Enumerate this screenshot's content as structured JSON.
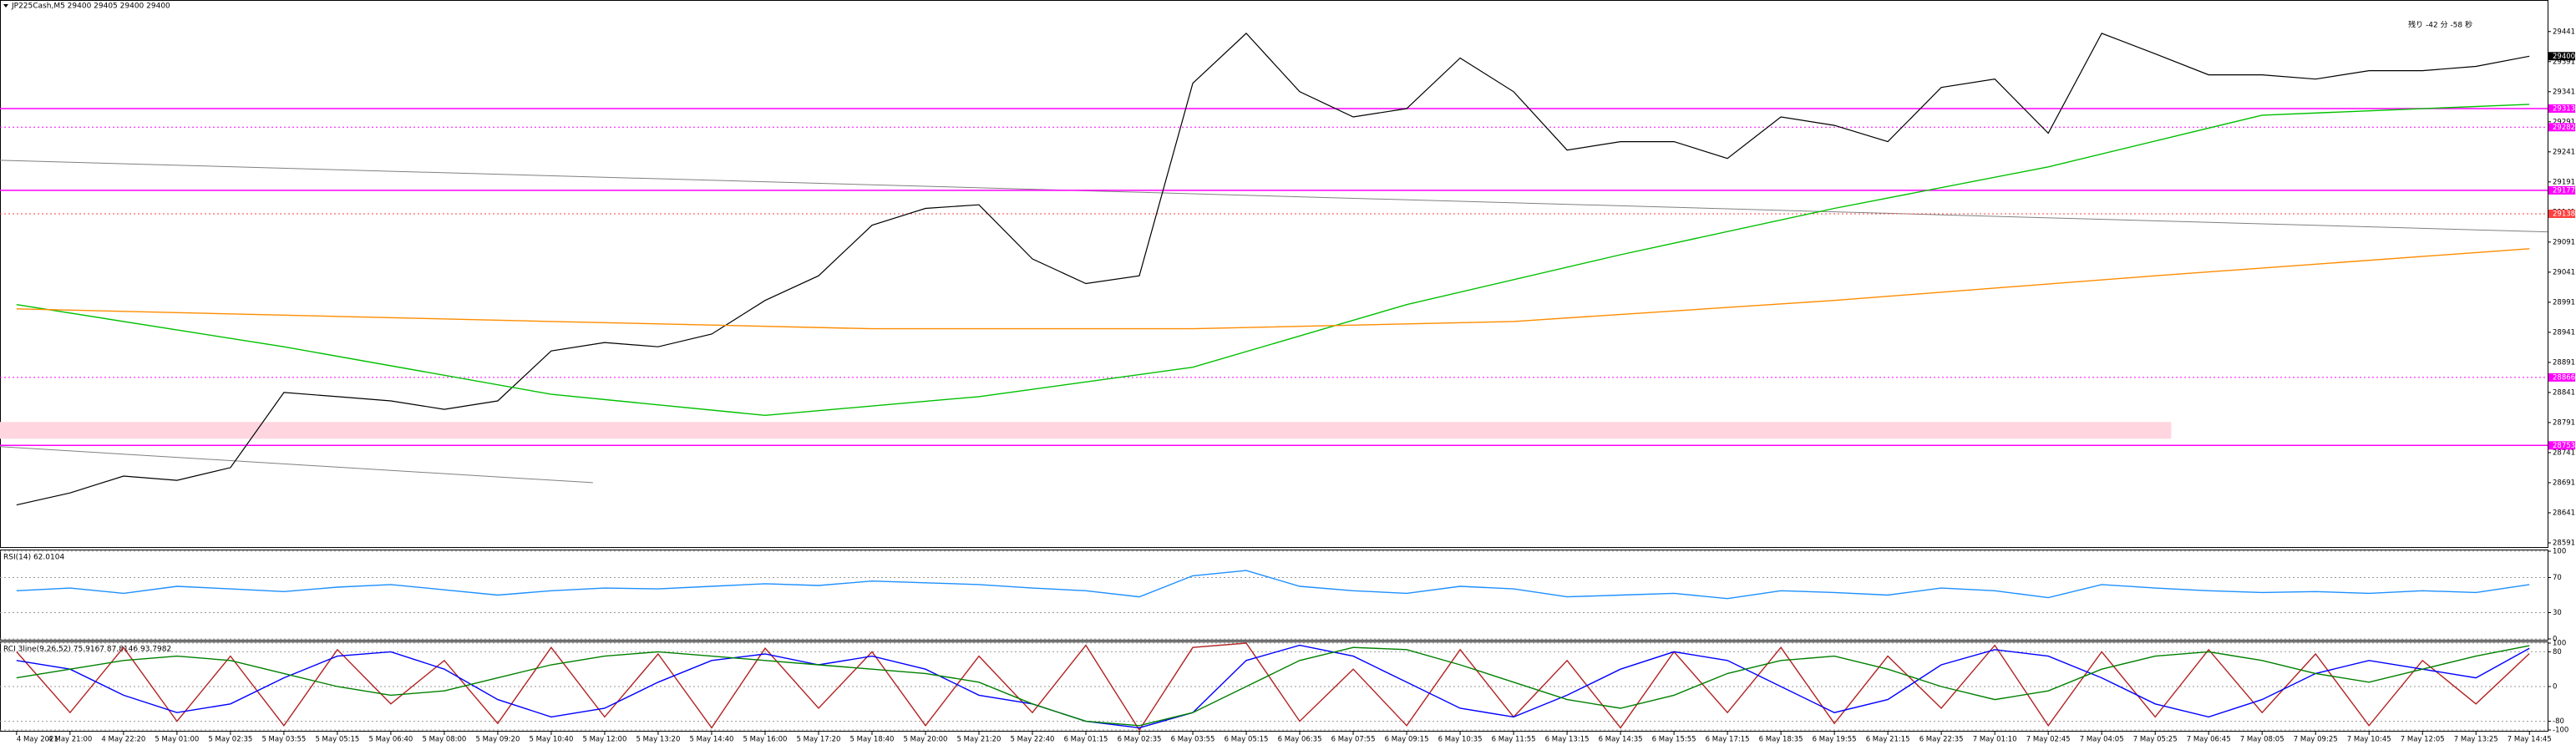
{
  "chart_data": [
    {
      "type": "line",
      "title": "JP225Cash,M5  29400 29405 29400 29400",
      "countdown": "残り -42 分 -58 秒",
      "current": 29400,
      "categories": [
        "4 May 2021",
        "4 May 21:00",
        "4 May 22:20",
        "5 May 01:00",
        "5 May 02:35",
        "5 May 03:55",
        "5 May 05:15",
        "5 May 06:40",
        "5 May 08:00",
        "5 May 09:20",
        "5 May 10:40",
        "5 May 12:00",
        "5 May 13:20",
        "5 May 14:40",
        "5 May 16:00",
        "5 May 17:20",
        "5 May 18:40",
        "5 May 20:00",
        "5 May 21:20",
        "5 May 22:40",
        "6 May 01:15",
        "6 May 02:35",
        "6 May 03:55",
        "6 May 05:15",
        "6 May 06:35",
        "6 May 07:55",
        "6 May 09:15",
        "6 May 10:35",
        "6 May 11:55",
        "6 May 13:15",
        "6 May 14:35",
        "6 May 15:55",
        "6 May 17:15",
        "6 May 18:35",
        "6 May 19:55",
        "6 May 21:15",
        "6 May 22:35",
        "7 May 01:10",
        "7 May 02:45",
        "7 May 04:05",
        "7 May 05:25",
        "7 May 06:45",
        "7 May 08:05",
        "7 May 09:25",
        "7 May 10:45",
        "7 May 12:05",
        "7 May 13:25",
        "7 May 14:45"
      ],
      "xlim": [
        -0.31,
        47.34
      ],
      "ylim": [
        28584,
        29474
      ],
      "yticks": [
        29441,
        29391,
        29341,
        29291,
        29241,
        29191,
        29141,
        29091,
        29041,
        28991,
        28941,
        28891,
        28841,
        28791,
        28741,
        28691,
        28641,
        28591
      ],
      "grid": false,
      "series": [
        {
          "color": "#000000",
          "values": [
            28654,
            28674,
            28702,
            28695,
            28716,
            28841,
            28834,
            28827,
            28813,
            28827,
            28910,
            28924,
            28917,
            28938,
            28994,
            29035,
            29119,
            29147,
            29153,
            29063,
            29022,
            29035,
            29355,
            29438,
            29341,
            29299,
            29313,
            29397,
            29341,
            29244,
            29258,
            29258,
            29230,
            29299,
            29285,
            29258,
            29348,
            29362,
            29272,
            29438,
            29404,
            29369,
            29369,
            29362,
            29376,
            29376,
            29383,
            29400
          ]
        },
        {
          "color": "#00c000",
          "x": [
            0,
            5,
            10,
            14,
            18,
            22,
            26,
            30,
            34,
            38,
            42,
            47
          ],
          "values": [
            28987,
            28917,
            28838,
            28803,
            28834,
            28883,
            28987,
            29070,
            29147,
            29216,
            29302,
            29320
          ]
        },
        {
          "color": "#ff8c00",
          "x": [
            0,
            10,
            16,
            22,
            28,
            34,
            40,
            47
          ],
          "values": [
            28980,
            28959,
            28947,
            28947,
            28959,
            28994,
            29035,
            29080
          ]
        }
      ],
      "trendlines": [
        {
          "color": "#808080",
          "x": [
            -0.31,
            47.34
          ],
          "values": [
            29227,
            29108
          ]
        },
        {
          "color": "#808080",
          "x": [
            -0.31,
            10.78
          ],
          "values": [
            28751,
            28691
          ]
        }
      ],
      "band": {
        "color": "#ffd6e0",
        "values": [
          28764,
          28792
        ]
      },
      "levels": [
        {
          "value": 29313,
          "style": "solid",
          "color": "#ff00ff"
        },
        {
          "value": 29282,
          "style": "dotted",
          "color": "#ff00ff"
        },
        {
          "value": 29177,
          "style": "solid",
          "color": "#ff00ff"
        },
        {
          "value": 29138,
          "style": "dotted",
          "color": "#ff4040"
        },
        {
          "value": 28866,
          "style": "dotted",
          "color": "#ff00ff"
        },
        {
          "value": 28753,
          "style": "solid",
          "color": "#ff00ff"
        }
      ]
    },
    {
      "type": "line",
      "title": "RSI(14) 62.0104",
      "xlim": [
        -0.31,
        47.34
      ],
      "ylim": [
        0,
        100
      ],
      "yticks": [
        0,
        30,
        70,
        100
      ],
      "grid": true,
      "series": [
        {
          "color": "#1e90ff",
          "values": [
            55,
            58,
            52,
            60,
            57,
            54,
            59,
            62,
            56,
            50,
            55,
            58,
            57,
            60,
            63,
            61,
            66,
            64,
            62,
            58,
            55,
            48,
            72,
            78,
            60,
            55,
            52,
            60,
            57,
            48,
            50,
            52,
            46,
            55,
            53,
            50,
            58,
            55,
            47,
            62,
            58,
            55,
            53,
            54,
            52,
            55,
            53,
            62
          ]
        }
      ]
    },
    {
      "type": "line",
      "title": "RCI 3line(9,26,52) 75.9167 87.8146 93.7982",
      "xlim": [
        -0.31,
        47.34
      ],
      "ylim": [
        -100,
        100
      ],
      "yticks": [
        -100,
        -80,
        0,
        80,
        100
      ],
      "grid": true,
      "series": [
        {
          "color": "#b22222",
          "values": [
            80,
            -60,
            90,
            -80,
            70,
            -90,
            85,
            -40,
            60,
            -85,
            90,
            -70,
            75,
            -95,
            88,
            -50,
            80,
            -90,
            70,
            -60,
            95,
            -100,
            90,
            100,
            -80,
            40,
            -90,
            85,
            -70,
            60,
            -95,
            80,
            -60,
            90,
            -85,
            70,
            -50,
            95,
            -90,
            80,
            -70,
            85,
            -60,
            75,
            -90,
            60,
            -40,
            76
          ]
        },
        {
          "color": "#0000ff",
          "values": [
            60,
            40,
            -20,
            -60,
            -40,
            20,
            70,
            80,
            40,
            -30,
            -70,
            -50,
            10,
            60,
            75,
            50,
            70,
            40,
            -20,
            -40,
            -80,
            -95,
            -60,
            60,
            95,
            70,
            10,
            -50,
            -70,
            -20,
            40,
            80,
            60,
            0,
            -60,
            -30,
            50,
            85,
            70,
            20,
            -40,
            -70,
            -30,
            30,
            60,
            40,
            20,
            88
          ]
        },
        {
          "color": "#008000",
          "values": [
            20,
            40,
            60,
            70,
            60,
            30,
            0,
            -20,
            -10,
            20,
            50,
            70,
            80,
            70,
            60,
            50,
            40,
            30,
            10,
            -40,
            -80,
            -90,
            -60,
            0,
            60,
            90,
            85,
            50,
            10,
            -30,
            -50,
            -20,
            30,
            60,
            70,
            40,
            0,
            -30,
            -10,
            40,
            70,
            80,
            60,
            30,
            10,
            40,
            70,
            94
          ]
        }
      ]
    }
  ]
}
